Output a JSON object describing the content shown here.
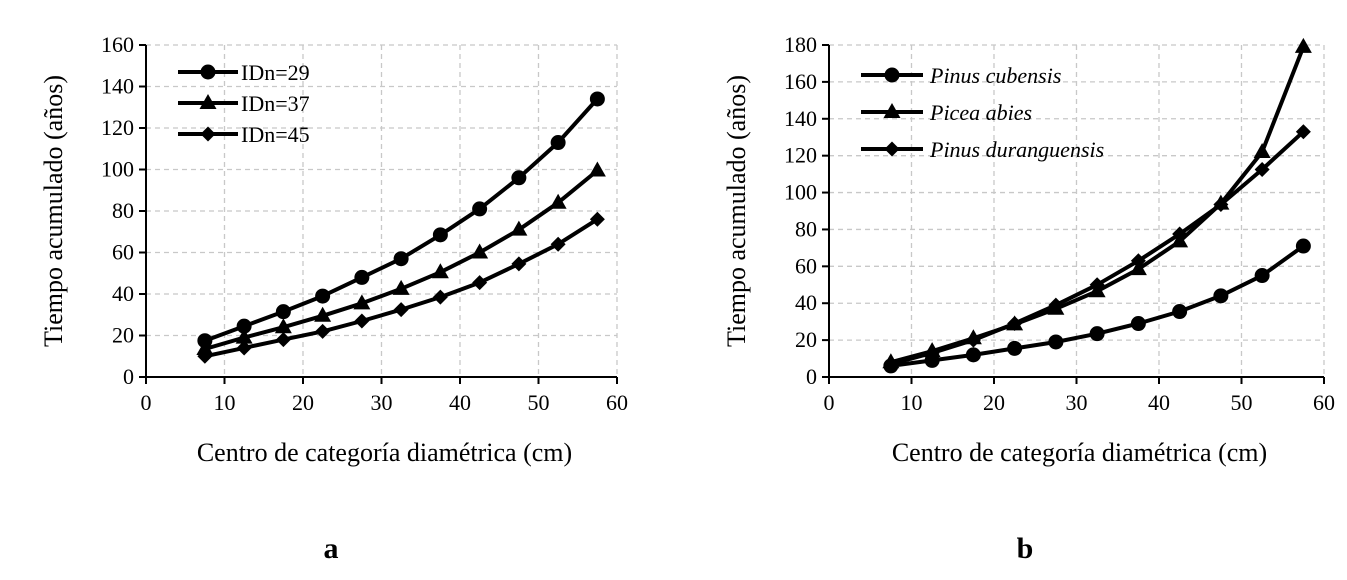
{
  "chart_data": [
    {
      "type": "line",
      "panel_label": "a",
      "xlabel": "Centro de categoría diamétrica (cm)",
      "ylabel": "Tiempo acumulado (años)",
      "xlim": [
        0,
        60
      ],
      "ylim": [
        0,
        160
      ],
      "xticks": [
        "0",
        "10",
        "20",
        "30",
        "40",
        "50",
        "60"
      ],
      "yticks": [
        "0",
        "20",
        "40",
        "60",
        "80",
        "100",
        "120",
        "140",
        "160"
      ],
      "grid": true,
      "legend_position": "top-left",
      "x": [
        7.5,
        12.5,
        17.5,
        22.5,
        27.5,
        32.5,
        37.5,
        42.5,
        47.5,
        52.5,
        57.5
      ],
      "series": [
        {
          "name": "IDn=29",
          "marker": "circle",
          "values": [
            17.5,
            24.5,
            31.5,
            39,
            48,
            57,
            68.5,
            81,
            96,
            113,
            134
          ]
        },
        {
          "name": "IDn=37",
          "marker": "triangle",
          "values": [
            13.5,
            19,
            24,
            29.5,
            35.5,
            42.5,
            50.5,
            60,
            71,
            84,
            99.5
          ]
        },
        {
          "name": "IDn=45",
          "marker": "diamond",
          "values": [
            10,
            14,
            18,
            22,
            27,
            32.5,
            38.5,
            45.5,
            54.5,
            64,
            76
          ]
        }
      ]
    },
    {
      "type": "line",
      "panel_label": "b",
      "xlabel": "Centro de categoría diamétrica (cm)",
      "ylabel": "Tiempo acumulado (años)",
      "xlim": [
        0,
        60
      ],
      "ylim": [
        0,
        180
      ],
      "xticks": [
        "0",
        "10",
        "20",
        "30",
        "40",
        "50",
        "60"
      ],
      "yticks": [
        "0",
        "20",
        "40",
        "60",
        "80",
        "100",
        "120",
        "140",
        "160",
        "180"
      ],
      "grid": true,
      "legend_position": "top-left",
      "legend_italic": true,
      "x": [
        7.5,
        12.5,
        17.5,
        22.5,
        27.5,
        32.5,
        37.5,
        42.5,
        47.5,
        52.5,
        57.5
      ],
      "series": [
        {
          "name": "Pinus cubensis",
          "marker": "circle",
          "values": [
            6,
            9,
            12,
            15.5,
            19,
            23.5,
            29,
            35.5,
            44,
            55,
            71
          ]
        },
        {
          "name": "Picea abies",
          "marker": "triangle",
          "values": [
            8,
            14,
            21,
            28.5,
            37,
            46.5,
            58.5,
            73.5,
            94,
            122,
            179
          ]
        },
        {
          "name": "Pinus duranguensis",
          "marker": "diamond",
          "values": [
            7,
            13,
            20,
            29,
            39,
            50,
            63,
            77.5,
            93.5,
            112.5,
            133
          ]
        }
      ]
    }
  ]
}
